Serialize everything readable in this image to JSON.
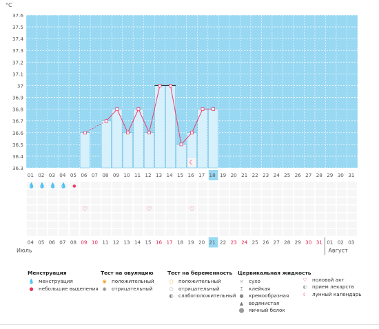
{
  "colors": {
    "chart_bg": "#99d8f2",
    "bar_fill": "#d6f0fc",
    "bar_stroke": "#5fb6e0",
    "line": "#ee3e6c",
    "grid": "#ffffff",
    "day_text": "#555555",
    "weekend_text": "#e02050",
    "highlight": "#99d8f2",
    "cell_bg": "#f6f6f6",
    "cell_border": "#ffffff",
    "axis_text": "#555555"
  },
  "chart_data": {
    "type": "bar",
    "title": "",
    "ylabel": "°C",
    "xlabel": "",
    "ylim": [
      36.3,
      37.6
    ],
    "yticks": [
      "37.6",
      "37.5",
      "37.4",
      "37.3",
      "37.2",
      "37.1",
      "37",
      "36.9",
      "36.8",
      "36.7",
      "36.6",
      "36.5",
      "36.4",
      "36.3"
    ],
    "yticks_values": [
      37.6,
      37.5,
      37.4,
      37.3,
      37.2,
      37.1,
      37.0,
      36.9,
      36.8,
      36.7,
      36.6,
      36.5,
      36.4,
      36.3
    ],
    "categories": [
      "01",
      "02",
      "03",
      "04",
      "05",
      "06",
      "07",
      "08",
      "09",
      "10",
      "11",
      "12",
      "13",
      "14",
      "15",
      "16",
      "17",
      "18",
      "19",
      "20",
      "21",
      "22",
      "23",
      "24",
      "25",
      "26",
      "27",
      "28",
      "29",
      "30",
      "31"
    ],
    "values": [
      null,
      null,
      null,
      null,
      null,
      36.6,
      null,
      36.7,
      36.8,
      36.6,
      36.8,
      36.6,
      37.0,
      37.0,
      36.5,
      36.6,
      36.8,
      36.8,
      null,
      null,
      null,
      null,
      null,
      null,
      null,
      null,
      null,
      null,
      null,
      null,
      null
    ],
    "dashed_gaps": [
      [
        5,
        7
      ]
    ],
    "flat_markers": [
      12,
      13
    ],
    "highlighted_day": 17,
    "grid": true
  },
  "cycle_days": [
    "01",
    "02",
    "03",
    "04",
    "05",
    "06",
    "07",
    "08",
    "09",
    "10",
    "11",
    "12",
    "13",
    "14",
    "15",
    "16",
    "17",
    "18",
    "19",
    "20",
    "21",
    "22",
    "23",
    "24",
    "25",
    "26",
    "27",
    "28",
    "29",
    "30",
    "31"
  ],
  "dates": [
    "04",
    "05",
    "06",
    "07",
    "08",
    "09",
    "10",
    "11",
    "12",
    "13",
    "14",
    "15",
    "16",
    "17",
    "18",
    "19",
    "20",
    "21",
    "22",
    "23",
    "24",
    "25",
    "26",
    "27",
    "28",
    "29",
    "30",
    "31",
    "01",
    "02",
    "03"
  ],
  "weekend_dates": [
    5,
    6,
    12,
    13,
    19,
    20,
    26,
    27
  ],
  "highlighted_date": 17,
  "month_labels": {
    "left": "Июль",
    "right": "Август"
  },
  "month_split_index": 28,
  "symbols": {
    "menstruation": [
      0,
      1,
      2,
      3
    ],
    "light_spotting": [
      4
    ],
    "intercourse": [
      5,
      11,
      15
    ],
    "moon_calendar": [
      15
    ]
  },
  "legend": {
    "menstruation": {
      "title": "Менструация",
      "items": [
        {
          "icon": "menstruation-icon",
          "label": "менструация"
        },
        {
          "icon": "spotting-icon",
          "label": "небольшие выделения"
        }
      ]
    },
    "ovulation": {
      "title": "Тест на овуляцию",
      "items": [
        {
          "icon": "ovulation-positive-icon",
          "label": "положительный"
        },
        {
          "icon": "ovulation-negative-icon",
          "label": "отрицательный"
        }
      ]
    },
    "pregnancy": {
      "title": "Тест на беременность",
      "items": [
        {
          "icon": "pregnancy-positive-icon",
          "label": "положительный"
        },
        {
          "icon": "pregnancy-negative-icon",
          "label": "отрицательный"
        },
        {
          "icon": "pregnancy-weak-icon",
          "label": "слабоположительный"
        }
      ]
    },
    "cervical": {
      "title": "Цервикальная жидкость",
      "items": [
        {
          "icon": "dry-icon",
          "label": "сухо"
        },
        {
          "icon": "sticky-icon",
          "label": "клейкая"
        },
        {
          "icon": "creamy-icon",
          "label": "кремообразная"
        },
        {
          "icon": "watery-icon",
          "label": "водянистая"
        },
        {
          "icon": "eggwhite-icon",
          "label": "яичный белок"
        }
      ]
    },
    "other": {
      "items": [
        {
          "icon": "heart-icon",
          "label": "половой акт"
        },
        {
          "icon": "pill-icon",
          "label": "прием лекарств"
        },
        {
          "icon": "moon-icon",
          "label": "лунный календарь"
        }
      ]
    }
  }
}
